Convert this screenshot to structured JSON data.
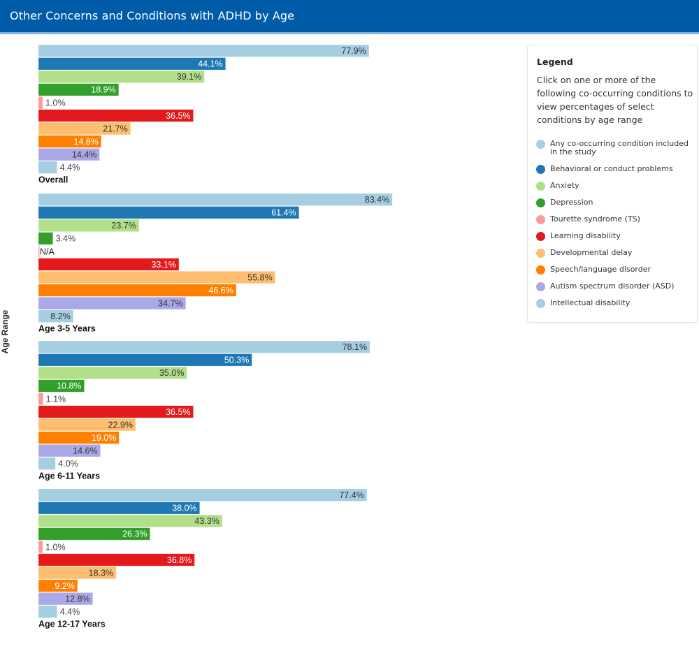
{
  "header": {
    "title": "Other Concerns and Conditions with ADHD by Age"
  },
  "legend": {
    "title": "Legend",
    "description": "Click on one or more of the following co-occurring conditions to view percentages of select conditions by age range",
    "items": [
      {
        "label": "Any co-occurring condition included in the study",
        "color": "#a6cee3"
      },
      {
        "label": "Behavioral or conduct problems",
        "color": "#1f78b4"
      },
      {
        "label": "Anxiety",
        "color": "#b2df8a"
      },
      {
        "label": "Depression",
        "color": "#33a02c"
      },
      {
        "label": "Tourette syndrome (TS)",
        "color": "#fb9a99"
      },
      {
        "label": "Learning disability",
        "color": "#e31a1c"
      },
      {
        "label": "Developmental delay",
        "color": "#fdbf6f"
      },
      {
        "label": "Speech/language disorder",
        "color": "#ff7f00"
      },
      {
        "label": "Autism spectrum disorder (ASD)",
        "color": "#aba8e8"
      },
      {
        "label": "Intellectual disability",
        "color": "#a6cee3"
      }
    ]
  },
  "chart_data": {
    "type": "bar",
    "orientation": "horizontal",
    "title": "Other Concerns and Conditions with ADHD by Age",
    "ylabel": "Age Range",
    "xlabel": "",
    "xlim": [
      0,
      100
    ],
    "grid": false,
    "legend_placement": "right",
    "categories": [
      "Overall",
      "Age 3-5 Years",
      "Age 6-11 Years",
      "Age 12-17 Years"
    ],
    "series": [
      {
        "name": "Any co-occurring condition included in the study",
        "color": "#a6cee3",
        "label_color": "#333333",
        "values": [
          77.9,
          83.4,
          78.1,
          77.4
        ]
      },
      {
        "name": "Behavioral or conduct problems",
        "color": "#1f78b4",
        "label_color": "#ffffff",
        "values": [
          44.1,
          61.4,
          50.3,
          38.0
        ]
      },
      {
        "name": "Anxiety",
        "color": "#b2df8a",
        "label_color": "#333333",
        "values": [
          39.1,
          23.7,
          35.0,
          43.3
        ]
      },
      {
        "name": "Depression",
        "color": "#33a02c",
        "label_color": "#ffffff",
        "values": [
          18.9,
          3.4,
          10.8,
          26.3
        ]
      },
      {
        "name": "Tourette syndrome (TS)",
        "color": "#fb9a99",
        "label_color": "#333333",
        "values": [
          1.0,
          null,
          1.1,
          1.0
        ]
      },
      {
        "name": "Learning disability",
        "color": "#e31a1c",
        "label_color": "#ffffff",
        "values": [
          36.5,
          33.1,
          36.5,
          36.8
        ]
      },
      {
        "name": "Developmental delay",
        "color": "#fdbf6f",
        "label_color": "#333333",
        "values": [
          21.7,
          55.8,
          22.9,
          18.3
        ]
      },
      {
        "name": "Speech/language disorder",
        "color": "#ff7f00",
        "label_color": "#ffffff",
        "values": [
          14.8,
          46.6,
          19.0,
          9.2
        ]
      },
      {
        "name": "Autism spectrum disorder (ASD)",
        "color": "#aba8e8",
        "label_color": "#333333",
        "values": [
          14.4,
          34.7,
          14.6,
          12.8
        ]
      },
      {
        "name": "Intellectual disability",
        "color": "#a6cee3",
        "label_color": "#333333",
        "values": [
          4.4,
          8.2,
          4.0,
          4.4
        ]
      }
    ],
    "missing_label": "N/A",
    "value_suffix": "%"
  }
}
